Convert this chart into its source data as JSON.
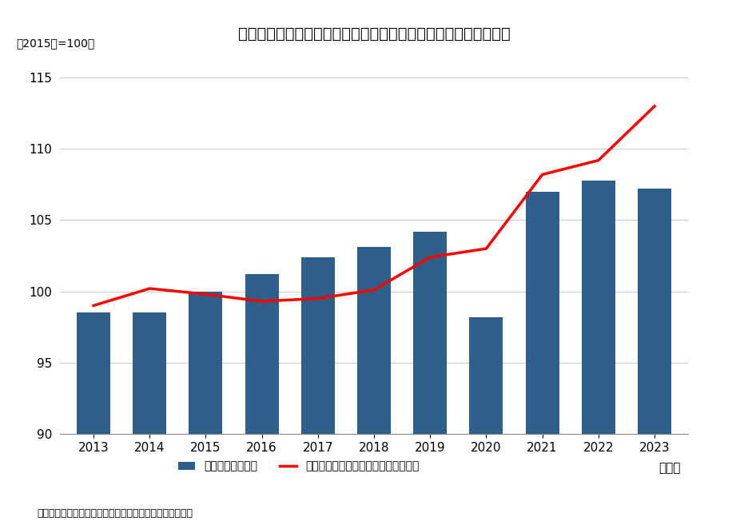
{
  "title": "学習塾売上高指数、受講生一人あたりの学習塾売上高指数の推移",
  "subtitle": "（2015年=100）",
  "footnote": "（資料）「特定サービス産業動態統計」　（経済産業省）",
  "years": [
    2013,
    2014,
    2015,
    2016,
    2017,
    2018,
    2019,
    2020,
    2021,
    2022,
    2023
  ],
  "bar_values": [
    98.5,
    98.5,
    100.0,
    101.2,
    102.4,
    103.1,
    104.2,
    98.2,
    107.0,
    107.8,
    107.2
  ],
  "line_values": [
    99.0,
    100.2,
    99.8,
    99.3,
    99.5,
    100.1,
    102.4,
    103.0,
    108.2,
    109.2,
    113.0
  ],
  "bar_color": "#2e5f8a",
  "line_color": "#ff0000",
  "ylim": [
    90,
    116
  ],
  "yticks": [
    90,
    95,
    100,
    105,
    110,
    115
  ],
  "ylabel_label": "（年）",
  "legend_bar": "学習塾売上高指数",
  "legend_line": "受講生一人あたりの学習塾売上高指数",
  "background_color": "#ffffff",
  "grid_color": "#cccccc",
  "title_fontsize": 14,
  "axis_fontsize": 11,
  "legend_fontsize": 10,
  "subtitle_fontsize": 10,
  "footnote_fontsize": 9
}
